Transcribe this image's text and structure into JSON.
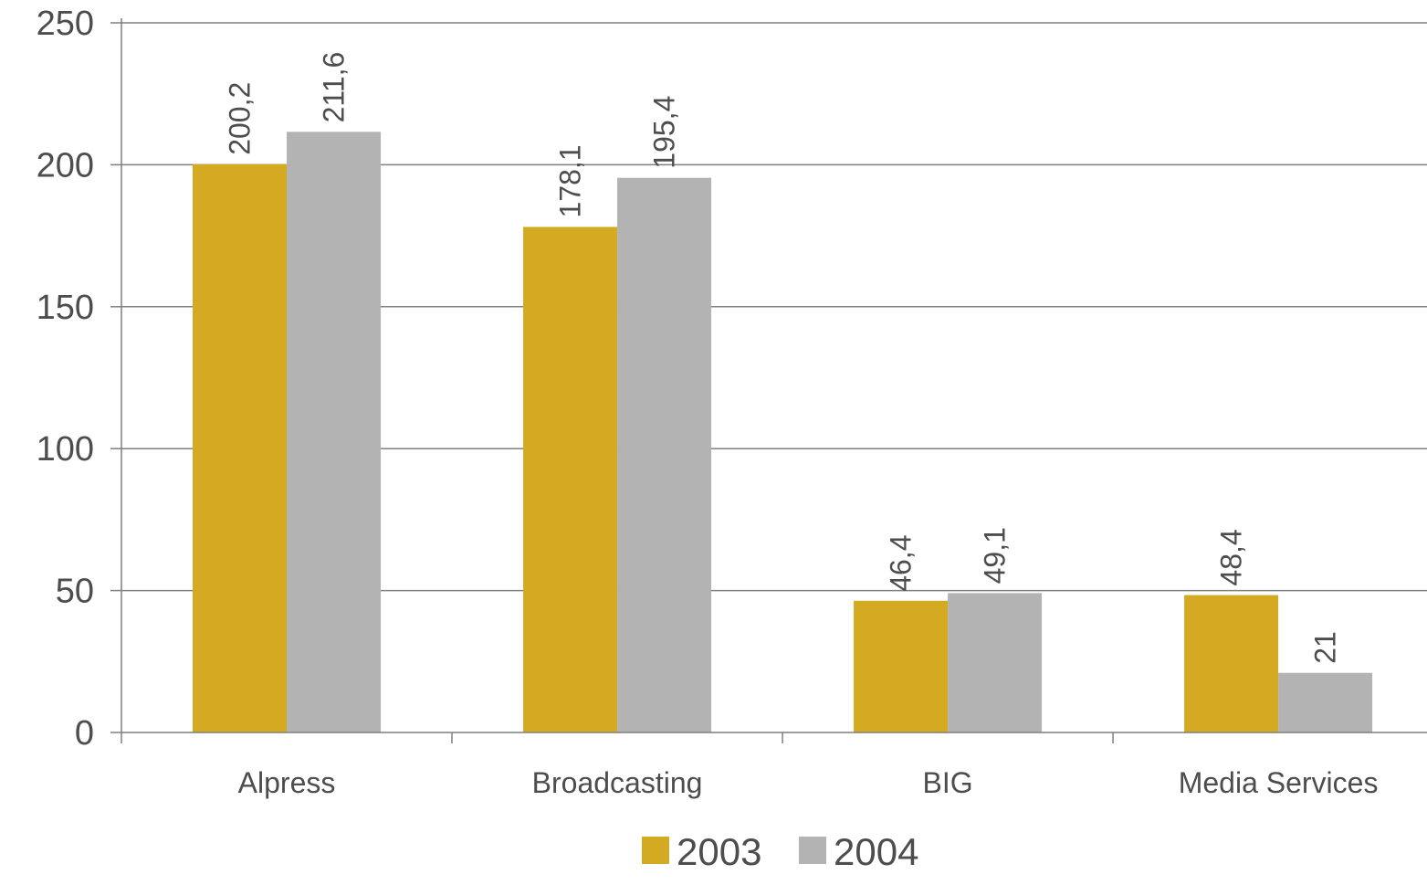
{
  "chart_data": {
    "type": "bar",
    "categories": [
      "Alpress",
      "Broadcasting",
      "BIG",
      "Media Services"
    ],
    "series": [
      {
        "name": "2003",
        "values": [
          200.2,
          178.1,
          46.4,
          48.4
        ],
        "labels": [
          "200,2",
          "178,1",
          "46,4",
          "48,4"
        ],
        "color": "#D4AA22"
      },
      {
        "name": "2004",
        "values": [
          211.6,
          195.4,
          49.1,
          21
        ],
        "labels": [
          "211,6",
          "195,4",
          "49,1",
          "21"
        ],
        "color": "#B3B3B3"
      }
    ],
    "y_ticks": [
      "0",
      "50",
      "100",
      "150",
      "200",
      "250"
    ],
    "ylim": [
      0,
      250
    ],
    "grid": true,
    "legend_position": "bottom-center"
  }
}
